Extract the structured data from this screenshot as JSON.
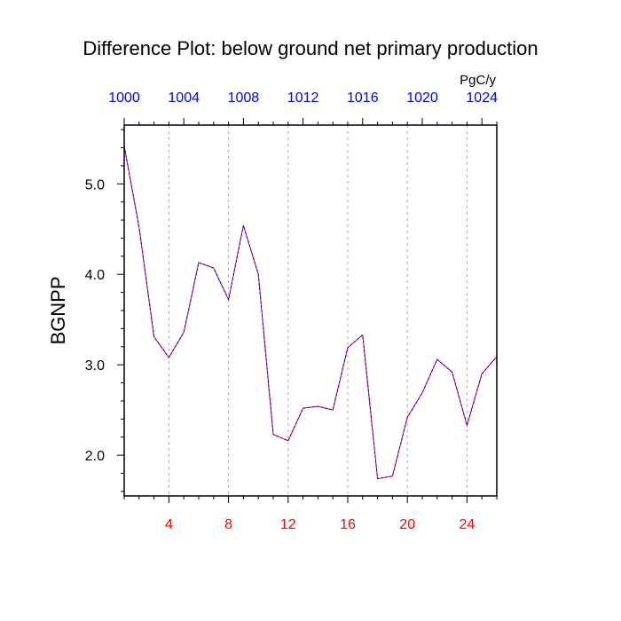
{
  "chart_data": {
    "type": "line",
    "title": "Difference Plot: below ground net primary production",
    "units_label": "PgC/y",
    "ylabel": "BGNPP",
    "xlabel": "",
    "xlim": [
      1,
      26
    ],
    "ylim": [
      1.55,
      5.65
    ],
    "bottom_axis": {
      "color": "#ff0000",
      "ticks": [
        4,
        8,
        12,
        16,
        20,
        24
      ],
      "labels": [
        "4",
        "8",
        "12",
        "16",
        "20",
        "24"
      ]
    },
    "top_axis": {
      "color": "#0000ff",
      "ticks": [
        1,
        5,
        9,
        13,
        17,
        21,
        25
      ],
      "labels": [
        "1000",
        "1004",
        "1008",
        "1012",
        "1016",
        "1020",
        "1024"
      ]
    },
    "y_ticks": [
      2.0,
      3.0,
      4.0,
      5.0
    ],
    "y_tick_labels": [
      "2.0",
      "3.0",
      "4.0",
      "5.0"
    ],
    "grid": "vertical-dashed",
    "line_style": "dashed",
    "colors": {
      "line_dash_a": "#0000ff",
      "line_dash_b": "#ff0000",
      "grid": "#aaaaaa"
    },
    "series": [
      {
        "x": [
          1,
          2,
          3,
          4,
          5,
          6,
          7,
          8,
          9,
          10,
          11,
          12,
          13,
          14,
          15,
          16,
          17,
          18,
          19,
          20,
          21,
          22,
          23,
          24,
          25,
          26
        ],
        "values": [
          5.42,
          4.52,
          3.31,
          3.08,
          3.36,
          4.13,
          4.07,
          3.72,
          4.54,
          4.0,
          2.23,
          2.16,
          2.52,
          2.54,
          2.5,
          3.19,
          3.33,
          1.74,
          1.77,
          2.42,
          2.69,
          3.06,
          2.92,
          2.33,
          2.9,
          3.09
        ]
      }
    ]
  }
}
